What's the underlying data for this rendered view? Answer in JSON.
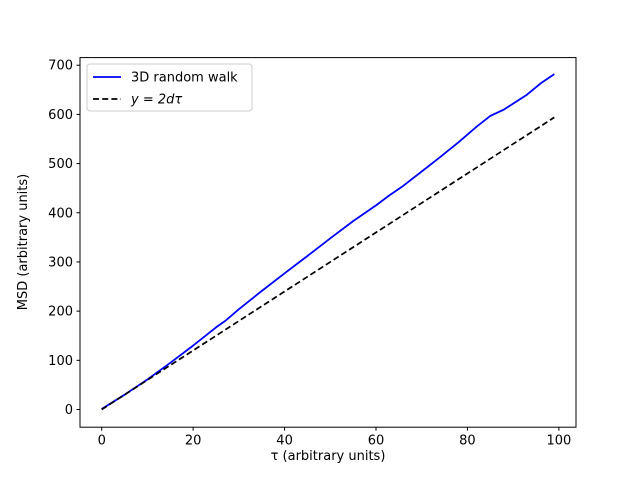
{
  "chart_data": {
    "type": "line",
    "title": "",
    "xlabel": "τ (arbitrary units)",
    "ylabel": "MSD (arbitrary units)",
    "xlim": [
      -4.75,
      103.75
    ],
    "ylim": [
      -36,
      715.5
    ],
    "xticks": [
      0,
      20,
      40,
      60,
      80,
      100
    ],
    "yticks": [
      0,
      100,
      200,
      300,
      400,
      500,
      600,
      700
    ],
    "grid": false,
    "legend_position": "upper-left",
    "series": [
      {
        "name": "3D random walk",
        "color": "#0000ff",
        "style": "solid",
        "line_width": 1.8,
        "x": [
          0,
          5,
          10,
          15,
          20,
          25,
          27,
          30,
          35,
          40,
          45,
          50,
          55,
          60,
          63,
          66,
          70,
          74,
          78,
          82,
          85,
          88,
          90,
          93,
          96,
          99
        ],
        "y": [
          1,
          30,
          61,
          95,
          130,
          167,
          180,
          204,
          241,
          277,
          312,
          348,
          383,
          415,
          436,
          455,
          484,
          513,
          543,
          575,
          597,
          610,
          622,
          640,
          663,
          682
        ]
      },
      {
        "name": "y = 2dτ",
        "color": "#000000",
        "style": "dashed",
        "line_width": 1.7,
        "x": [
          0,
          99
        ],
        "y": [
          0,
          594
        ]
      }
    ],
    "legend": [
      {
        "label": "3D random walk",
        "color": "#0000ff",
        "style": "solid"
      },
      {
        "label": "y = 2dτ",
        "color": "#000000",
        "style": "dashed"
      }
    ]
  },
  "colors": {
    "background": "#ffffff",
    "spine": "#000000",
    "legend_border": "#cccccc",
    "random_walk_line": "#0000ff",
    "theory_line": "#000000"
  }
}
